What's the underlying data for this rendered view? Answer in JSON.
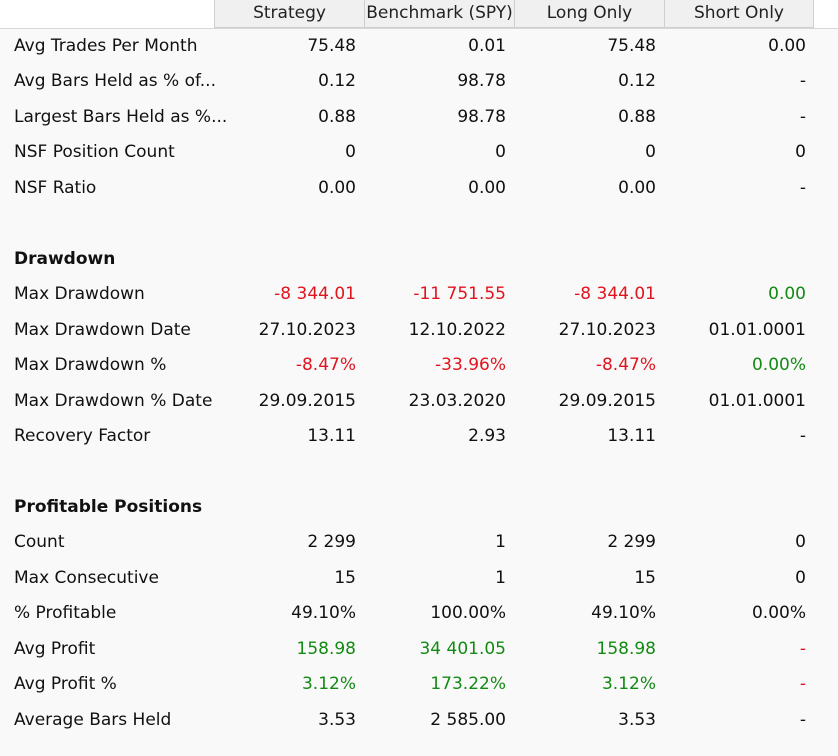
{
  "columns": [
    "Strategy",
    "Benchmark (SPY)",
    "Long Only",
    "Short Only"
  ],
  "rows": [
    {
      "label": "Avg Trades Per Month",
      "values": [
        "75.48",
        "0.01",
        "75.48",
        "0.00"
      ],
      "colors": [
        "",
        "",
        "",
        ""
      ]
    },
    {
      "label": "Avg Bars Held as % of...",
      "values": [
        "0.12",
        "98.78",
        "0.12",
        "-"
      ],
      "colors": [
        "",
        "",
        "",
        ""
      ]
    },
    {
      "label": "Largest Bars Held as %...",
      "values": [
        "0.88",
        "98.78",
        "0.88",
        "-"
      ],
      "colors": [
        "",
        "",
        "",
        ""
      ]
    },
    {
      "label": "NSF Position Count",
      "values": [
        "0",
        "0",
        "0",
        "0"
      ],
      "colors": [
        "",
        "",
        "",
        ""
      ]
    },
    {
      "label": "NSF Ratio",
      "values": [
        "0.00",
        "0.00",
        "0.00",
        "-"
      ],
      "colors": [
        "",
        "",
        "",
        ""
      ]
    },
    {
      "spacer": true
    },
    {
      "section": true,
      "label": "Drawdown"
    },
    {
      "label": "Max Drawdown",
      "values": [
        "-8 344.01",
        "-11 751.55",
        "-8 344.01",
        "0.00"
      ],
      "colors": [
        "neg",
        "neg",
        "neg",
        "pos"
      ]
    },
    {
      "label": "Max Drawdown Date",
      "values": [
        "27.10.2023",
        "12.10.2022",
        "27.10.2023",
        "01.01.0001"
      ],
      "colors": [
        "",
        "",
        "",
        ""
      ]
    },
    {
      "label": "Max Drawdown %",
      "values": [
        "-8.47%",
        "-33.96%",
        "-8.47%",
        "0.00%"
      ],
      "colors": [
        "neg",
        "neg",
        "neg",
        "pos"
      ]
    },
    {
      "label": "Max Drawdown % Date",
      "values": [
        "29.09.2015",
        "23.03.2020",
        "29.09.2015",
        "01.01.0001"
      ],
      "colors": [
        "",
        "",
        "",
        ""
      ]
    },
    {
      "label": "Recovery Factor",
      "values": [
        "13.11",
        "2.93",
        "13.11",
        "-"
      ],
      "colors": [
        "",
        "",
        "",
        ""
      ]
    },
    {
      "spacer": true
    },
    {
      "section": true,
      "label": "Profitable Positions"
    },
    {
      "label": "Count",
      "values": [
        "2 299",
        "1",
        "2 299",
        "0"
      ],
      "colors": [
        "",
        "",
        "",
        ""
      ]
    },
    {
      "label": "Max Consecutive",
      "values": [
        "15",
        "1",
        "15",
        "0"
      ],
      "colors": [
        "",
        "",
        "",
        ""
      ]
    },
    {
      "label": "% Profitable",
      "values": [
        "49.10%",
        "100.00%",
        "49.10%",
        "0.00%"
      ],
      "colors": [
        "",
        "",
        "",
        ""
      ]
    },
    {
      "label": "Avg Profit",
      "values": [
        "158.98",
        "34 401.05",
        "158.98",
        "-"
      ],
      "colors": [
        "pos",
        "pos",
        "pos",
        "neg"
      ]
    },
    {
      "label": "Avg Profit %",
      "values": [
        "3.12%",
        "173.22%",
        "3.12%",
        "-"
      ],
      "colors": [
        "pos",
        "pos",
        "pos",
        "neg"
      ]
    },
    {
      "label": "Average Bars Held",
      "values": [
        "3.53",
        "2 585.00",
        "3.53",
        "-"
      ],
      "colors": [
        "",
        "",
        "",
        ""
      ]
    }
  ]
}
